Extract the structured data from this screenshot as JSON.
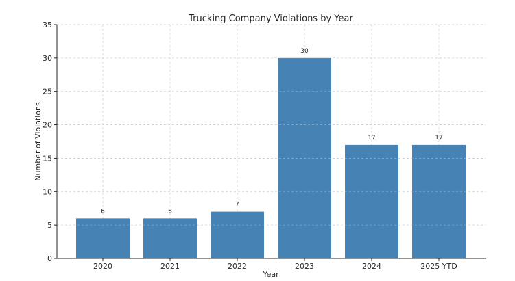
{
  "chart_data": {
    "type": "bar",
    "title": "Trucking Company Violations by Year",
    "xlabel": "Year",
    "ylabel": "Number of Violations",
    "categories": [
      "2020",
      "2021",
      "2022",
      "2023",
      "2024",
      "2025 YTD"
    ],
    "values": [
      6,
      6,
      7,
      30,
      17,
      17
    ],
    "ylim": [
      0,
      35
    ],
    "yticks": [
      0,
      5,
      10,
      15,
      20,
      25,
      30,
      35
    ],
    "grid": true,
    "bar_color": "#4682b4",
    "data_labels": true
  }
}
